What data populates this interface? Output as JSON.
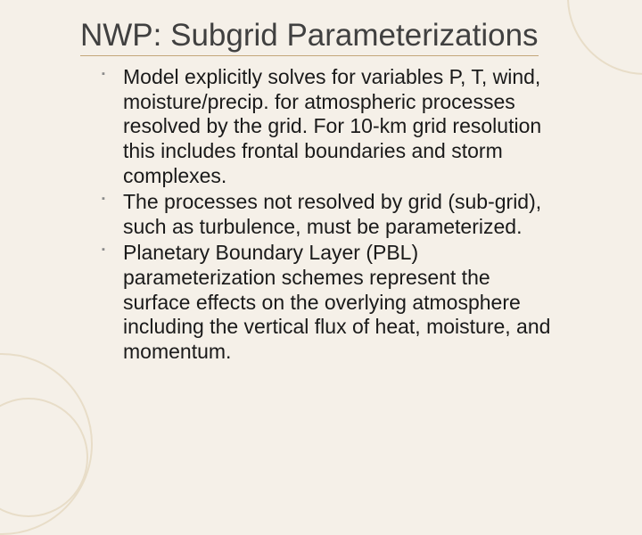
{
  "background_color": "#f5f0e8",
  "ring_color": "#e8ddc8",
  "title_underline_color": "#c4a77a",
  "title": "NWP:  Subgrid Parameterizations",
  "title_fontsize": 35,
  "title_color": "#404040",
  "bullet_fontsize": 23,
  "bullet_color": "#1a1a1a",
  "bullet_marker_color": "#8a8a8a",
  "bullets": [
    "Model explicitly solves for variables P, T, wind, moisture/precip.  for atmospheric processes resolved by the grid.   For 10-km grid resolution this includes frontal boundaries and storm complexes.",
    "The processes not resolved by grid (sub-grid), such as turbulence, must be parameterized.",
    "Planetary Boundary Layer (PBL) parameterization schemes represent the surface effects on the overlying atmosphere including the vertical flux of heat, moisture, and momentum."
  ]
}
